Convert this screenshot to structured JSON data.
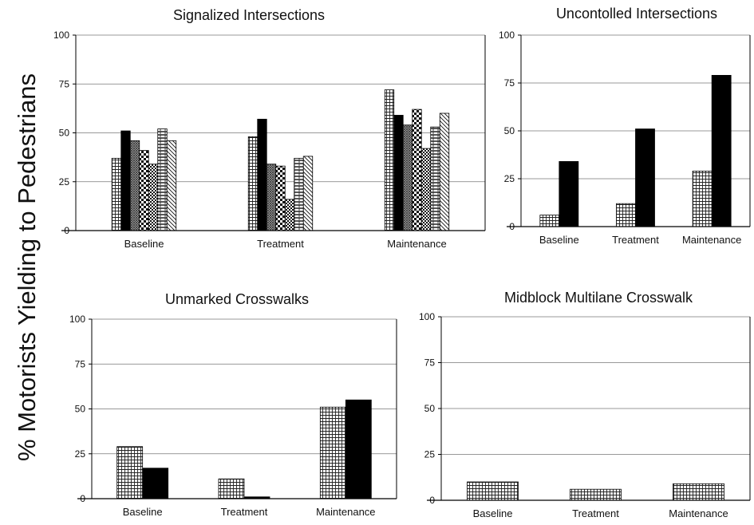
{
  "figure": {
    "ylabel": "% Motorists Yielding to Pedestrians"
  },
  "chart_data": [
    {
      "type": "bar",
      "title": "Signalized Intersections",
      "categories": [
        "Baseline",
        "Treatment",
        "Maintenance"
      ],
      "ylim": [
        0,
        100
      ],
      "yticks": [
        0,
        25,
        50,
        75,
        100
      ],
      "grid": true,
      "series": [
        {
          "pattern": "grid",
          "values": [
            37,
            48,
            72
          ]
        },
        {
          "pattern": "solid",
          "values": [
            51,
            57,
            59
          ]
        },
        {
          "pattern": "dense-cross",
          "values": [
            46,
            34,
            54
          ]
        },
        {
          "pattern": "checker",
          "values": [
            41,
            33,
            62
          ]
        },
        {
          "pattern": "fine-check",
          "values": [
            34,
            16,
            42
          ]
        },
        {
          "pattern": "hstripe",
          "values": [
            52,
            37,
            53
          ]
        },
        {
          "pattern": "diagonal",
          "values": [
            46,
            38,
            60
          ]
        }
      ]
    },
    {
      "type": "bar",
      "title": "Uncontolled Intersections",
      "categories": [
        "Baseline",
        "Treatment",
        "Maintenance"
      ],
      "ylim": [
        0,
        100
      ],
      "yticks": [
        0,
        25,
        50,
        75,
        100
      ],
      "grid": true,
      "series": [
        {
          "pattern": "grid",
          "values": [
            6,
            12,
            29
          ]
        },
        {
          "pattern": "solid",
          "values": [
            34,
            51,
            79
          ]
        }
      ]
    },
    {
      "type": "bar",
      "title": "Unmarked Crosswalks",
      "categories": [
        "Baseline",
        "Treatment",
        "Maintenance"
      ],
      "ylim": [
        0,
        100
      ],
      "yticks": [
        0,
        25,
        50,
        75,
        100
      ],
      "grid": true,
      "series": [
        {
          "pattern": "grid",
          "values": [
            29,
            11,
            51
          ]
        },
        {
          "pattern": "solid",
          "values": [
            17,
            1,
            55
          ]
        }
      ]
    },
    {
      "type": "bar",
      "title": "Midblock Multilane Crosswalk",
      "categories": [
        "Baseline",
        "Treatment",
        "Maintenance"
      ],
      "ylim": [
        0,
        100
      ],
      "yticks": [
        0,
        25,
        50,
        75,
        100
      ],
      "grid": true,
      "series": [
        {
          "pattern": "grid",
          "values": [
            10,
            6,
            9
          ]
        }
      ]
    }
  ]
}
